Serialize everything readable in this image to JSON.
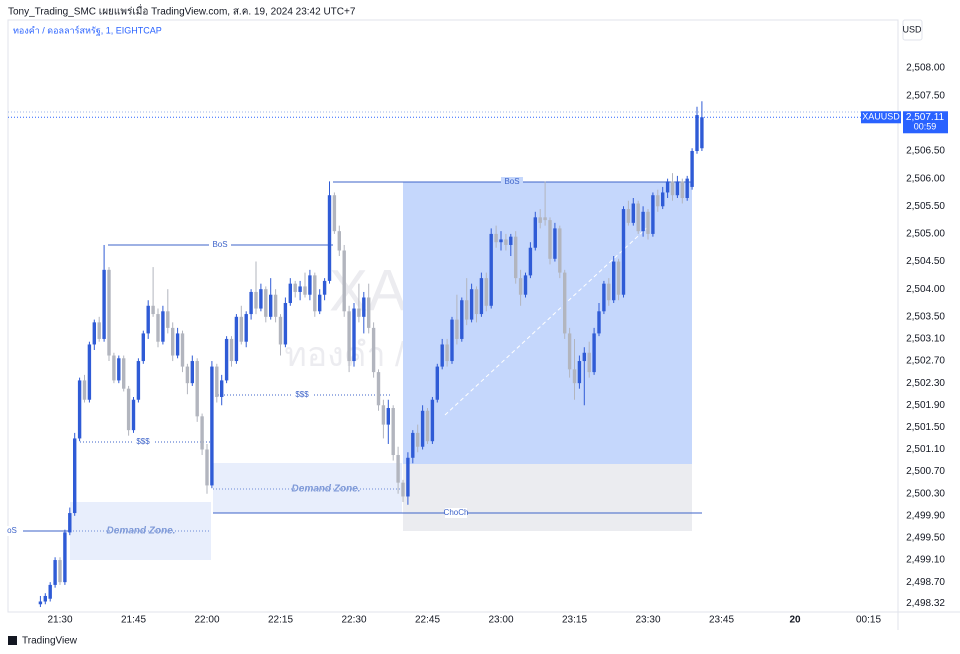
{
  "header": {
    "title": "Tony_Trading_SMC เผยแพร่เมื่อ TradingView.com, ส.ค. 19, 2024 23:42 UTC+7",
    "branding": "TradingView"
  },
  "chart_data": {
    "type": "candlestick",
    "subtitle": "ทองคำ / ดอลลาร์สหรัฐ, 1, EIGHTCAP",
    "watermark": [
      "XAUUSD",
      "ทองคำ / ดอลลาร์สหรัฐ"
    ],
    "currency": "USD",
    "symbol": "XAUUSD",
    "last_price_label": "2,507.11",
    "countdown": "00:59",
    "up_color": "#2f5bd6",
    "down_color": "#b2b5be",
    "annotations": [
      "oS",
      "BoS",
      "BoS",
      "$$$",
      "$$$",
      "Demand Zone.",
      "Demand Zone.",
      "ChoCh"
    ],
    "x": [
      "21:26",
      "21:27",
      "21:28",
      "21:29",
      "21:30",
      "21:31",
      "21:32",
      "21:33",
      "21:34",
      "21:35",
      "21:36",
      "21:37",
      "21:38",
      "21:39",
      "21:40",
      "21:41",
      "21:42",
      "21:43",
      "21:44",
      "21:45",
      "21:46",
      "21:47",
      "21:48",
      "21:49",
      "21:50",
      "21:51",
      "21:52",
      "21:53",
      "21:54",
      "21:55",
      "21:56",
      "21:57",
      "21:58",
      "21:59",
      "22:00",
      "22:01",
      "22:02",
      "22:03",
      "22:04",
      "22:05",
      "22:06",
      "22:07",
      "22:08",
      "22:09",
      "22:10",
      "22:11",
      "22:12",
      "22:13",
      "22:14",
      "22:15",
      "22:16",
      "22:17",
      "22:18",
      "22:19",
      "22:20",
      "22:21",
      "22:22",
      "22:23",
      "22:24",
      "22:25",
      "22:26",
      "22:27",
      "22:28",
      "22:29",
      "22:30",
      "22:31",
      "22:32",
      "22:33",
      "22:34",
      "22:35",
      "22:36",
      "22:37",
      "22:38",
      "22:39",
      "22:40",
      "22:41",
      "22:42",
      "22:43",
      "22:44",
      "22:45",
      "22:46",
      "22:47",
      "22:48",
      "22:49",
      "22:50",
      "22:51",
      "22:52",
      "22:53",
      "22:54",
      "22:55",
      "22:56",
      "22:57",
      "22:58",
      "22:59",
      "23:00",
      "23:01",
      "23:02",
      "23:03",
      "23:04",
      "23:05",
      "23:06",
      "23:07",
      "23:08",
      "23:09",
      "23:10",
      "23:11",
      "23:12",
      "23:13",
      "23:14",
      "23:15",
      "23:16",
      "23:17",
      "23:18",
      "23:19",
      "23:20",
      "23:21",
      "23:22",
      "23:23",
      "23:24",
      "23:25",
      "23:26",
      "23:27",
      "23:28",
      "23:29",
      "23:30",
      "23:31",
      "23:32",
      "23:33",
      "23:34",
      "23:35",
      "23:36",
      "23:37",
      "23:38",
      "23:39",
      "23:40",
      "23:41"
    ],
    "open": [
      2498.3,
      2498.35,
      2498.4,
      2498.65,
      2499.1,
      2498.7,
      2499.6,
      2499.95,
      2501.3,
      2502.35,
      2502,
      2503,
      2503.4,
      2503.1,
      2504.35,
      2502.8,
      2502.35,
      2502.75,
      2502.2,
      2501.45,
      2502,
      2502.7,
      2503.2,
      2503.7,
      2503.55,
      2503.05,
      2503.6,
      2503.3,
      2502.8,
      2503.2,
      2502.6,
      2502.3,
      2502.7,
      2501.7,
      2501.1,
      2500.45,
      2502.6,
      2502.05,
      2502.35,
      2503.1,
      2502.7,
      2503.5,
      2503.05,
      2503.55,
      2503.95,
      2503.65,
      2504,
      2503.5,
      2503.9,
      2503.5,
      2503,
      2503.75,
      2504.1,
      2503.95,
      2504.05,
      2503.9,
      2504.25,
      2503.6,
      2503.9,
      2504.15,
      2505.7,
      2505.05,
      2504.7,
      2503.6,
      2502.7,
      2503.65,
      2503.5,
      2503.85,
      2503.3,
      2502.5,
      2501.9,
      2501.55,
      2501.85,
      2501,
      2500.5,
      2500.25,
      2500.95,
      2501.4,
      2501.15,
      2501.8,
      2501.25,
      2502,
      2502.6,
      2503,
      2502.7,
      2503.45,
      2503.1,
      2503.8,
      2503.45,
      2504,
      2503.55,
      2504.2,
      2503.7,
      2505,
      2504.85,
      2504.9,
      2504.8,
      2504.95,
      2504.2,
      2503.9,
      2504.25,
      2504.75,
      2505.3,
      2505.3,
      2505.25,
      2504.55,
      2505.1,
      2504.3,
      2503.2,
      2502.55,
      2502.3,
      2502.7,
      2502.85,
      2502.5,
      2503.2,
      2503.6,
      2504.1,
      2503.8,
      2504.5,
      2503.9,
      2505.45,
      2505.2,
      2505.55,
      2505.05,
      2505.4,
      2505,
      2505.7,
      2505.5,
      2505.75,
      2505.95,
      2505.7,
      2505.95,
      2505.65,
      2505.85,
      2506.5,
      2506.55
    ],
    "high": [
      2498.45,
      2498.5,
      2498.7,
      2499.15,
      2499.15,
      2499.65,
      2500.05,
      2501.4,
      2502.4,
      2502.45,
      2503.05,
      2503.45,
      2503.5,
      2504.8,
      2504.4,
      2502.85,
      2502.8,
      2502.8,
      2502.25,
      2502.05,
      2502.75,
      2503.25,
      2503.8,
      2504.4,
      2503.65,
      2503.7,
      2504,
      2503.4,
      2503.3,
      2503.25,
      2502.65,
      2502.8,
      2502.75,
      2501.75,
      2501.2,
      2502.7,
      2502.65,
      2502.45,
      2503.15,
      2503.15,
      2503.55,
      2503.7,
      2503.6,
      2504,
      2504.5,
      2504.1,
      2504.05,
      2504.2,
      2504,
      2503.55,
      2503.85,
      2504.2,
      2504.15,
      2504.15,
      2504.3,
      2504.35,
      2504.3,
      2504,
      2504.2,
      2505.95,
      2505.75,
      2505.15,
      2504.8,
      2503.7,
      2503.75,
      2504.1,
      2503.95,
      2504.1,
      2503.4,
      2502.55,
      2502,
      2502,
      2501.9,
      2501.15,
      2500.55,
      2501.05,
      2501.45,
      2501.55,
      2501.9,
      2501.85,
      2502.05,
      2502.65,
      2503.1,
      2503.1,
      2503.5,
      2503.9,
      2503.85,
      2504.2,
      2504.1,
      2504.05,
      2504.3,
      2504.3,
      2505.1,
      2505.15,
      2505.05,
      2505,
      2505,
      2505.05,
      2504.35,
      2504.3,
      2504.85,
      2505.4,
      2505.45,
      2505.95,
      2505.3,
      2505.2,
      2505.15,
      2504.35,
      2503.3,
      2503.1,
      2502.8,
      2502.95,
      2503.05,
      2503.3,
      2503.75,
      2504.15,
      2504.2,
      2504.6,
      2504.55,
      2505.5,
      2505.6,
      2505.65,
      2505.6,
      2505.5,
      2505.45,
      2505.75,
      2505.8,
      2505.85,
      2506,
      2506.1,
      2506.05,
      2506,
      2506.05,
      2506.55,
      2507.3,
      2507.4
    ],
    "low": [
      2498.25,
      2498.3,
      2498.35,
      2498.6,
      2498.65,
      2498.65,
      2499.55,
      2499.9,
      2501.25,
      2501.95,
      2501.95,
      2502.9,
      2503.05,
      2503.05,
      2502.7,
      2502.3,
      2502.3,
      2502.15,
      2501.35,
      2501.4,
      2501.95,
      2502.65,
      2503.1,
      2503.5,
      2502.95,
      2503,
      2503.2,
      2502.7,
      2502.75,
      2502.5,
      2502.1,
      2502.25,
      2501.6,
      2501,
      2500.3,
      2500.4,
      2501.95,
      2501.9,
      2502.3,
      2502.6,
      2502.65,
      2503,
      2502.95,
      2503.45,
      2503.55,
      2503.6,
      2503.4,
      2503.45,
      2503.4,
      2502.8,
      2502.95,
      2503.7,
      2503.85,
      2503.8,
      2503.85,
      2503.8,
      2503.5,
      2503.55,
      2503.8,
      2504.1,
      2505,
      2504.6,
      2503.5,
      2502.5,
      2502.6,
      2503.4,
      2503.2,
      2503.2,
      2502.4,
      2501.8,
      2501.3,
      2501.2,
      2500.9,
      2500.3,
      2500.15,
      2500.1,
      2500.85,
      2501.05,
      2501.1,
      2501.2,
      2501.2,
      2501.95,
      2502.55,
      2502.6,
      2502.65,
      2503,
      2503.05,
      2503.35,
      2503.4,
      2503.4,
      2503.5,
      2503.6,
      2503.65,
      2504.75,
      2504.7,
      2504.7,
      2504.6,
      2504.1,
      2503.7,
      2503.85,
      2504.2,
      2504.7,
      2505.1,
      2505.15,
      2504.45,
      2504.5,
      2504.2,
      2503.1,
      2502.4,
      2502,
      2502.2,
      2501.9,
      2502.4,
      2502.45,
      2503.15,
      2503.55,
      2503.7,
      2503.75,
      2503.8,
      2503.85,
      2505.15,
      2505.15,
      2505,
      2504.95,
      2504.9,
      2504.95,
      2505.4,
      2505.45,
      2505.65,
      2505.6,
      2505.65,
      2505.55,
      2505.6,
      2505.8,
      2506.45,
      2506.5
    ],
    "close": [
      2498.35,
      2498.45,
      2498.65,
      2499.1,
      2498.7,
      2499.6,
      2499.95,
      2501.3,
      2502.35,
      2502,
      2503,
      2503.4,
      2503.1,
      2504.35,
      2502.8,
      2502.35,
      2502.75,
      2502.2,
      2501.45,
      2502,
      2502.7,
      2503.2,
      2503.7,
      2503.55,
      2503.05,
      2503.6,
      2503.3,
      2502.8,
      2503.2,
      2502.6,
      2502.3,
      2502.7,
      2501.7,
      2501.1,
      2500.45,
      2502.6,
      2502.05,
      2502.35,
      2503.1,
      2502.7,
      2503.5,
      2503.05,
      2503.55,
      2503.95,
      2503.65,
      2504,
      2503.5,
      2503.9,
      2503.5,
      2503,
      2503.75,
      2504.1,
      2503.95,
      2504.05,
      2503.9,
      2504.25,
      2503.6,
      2503.9,
      2504.15,
      2505.7,
      2505.05,
      2504.7,
      2503.6,
      2502.7,
      2503.65,
      2503.5,
      2503.85,
      2503.3,
      2502.5,
      2501.9,
      2501.55,
      2501.85,
      2501,
      2500.5,
      2500.25,
      2500.95,
      2501.4,
      2501.15,
      2501.8,
      2501.25,
      2502,
      2502.6,
      2503,
      2502.7,
      2503.45,
      2503.1,
      2503.8,
      2503.45,
      2504,
      2503.55,
      2504.2,
      2503.7,
      2505,
      2504.85,
      2504.9,
      2504.8,
      2504.95,
      2504.2,
      2503.9,
      2504.25,
      2504.75,
      2505.3,
      2505.2,
      2505.25,
      2504.55,
      2505.1,
      2504.3,
      2503.2,
      2502.55,
      2502.3,
      2502.7,
      2502.85,
      2502.5,
      2503.2,
      2503.6,
      2504.1,
      2503.8,
      2504.5,
      2503.9,
      2505.45,
      2505.2,
      2505.55,
      2505.05,
      2505.4,
      2505,
      2505.7,
      2505.5,
      2505.75,
      2505.95,
      2505.7,
      2505.95,
      2505.65,
      2506,
      2506.5,
      2507.15,
      2507.11
    ],
    "ylim": [
      2498.16,
      2508.87
    ],
    "yticks": [
      {
        "value": 2508,
        "label": "2,508.00"
      },
      {
        "value": 2507.5,
        "label": "2,507.50"
      },
      {
        "value": 2506.5,
        "label": "2,506.50"
      },
      {
        "value": 2506,
        "label": "2,506.00"
      },
      {
        "value": 2505.5,
        "label": "2,505.50"
      },
      {
        "value": 2505,
        "label": "2,505.00"
      },
      {
        "value": 2504.5,
        "label": "2,504.50"
      },
      {
        "value": 2504,
        "label": "2,504.00"
      },
      {
        "value": 2503.5,
        "label": "2,503.50"
      },
      {
        "value": 2503.1,
        "label": "2,503.10"
      },
      {
        "value": 2502.7,
        "label": "2,502.70"
      },
      {
        "value": 2502.3,
        "label": "2,502.30"
      },
      {
        "value": 2501.9,
        "label": "2,501.90"
      },
      {
        "value": 2501.5,
        "label": "2,501.50"
      },
      {
        "value": 2501.1,
        "label": "2,501.10"
      },
      {
        "value": 2500.7,
        "label": "2,500.70"
      },
      {
        "value": 2500.3,
        "label": "2,500.30"
      },
      {
        "value": 2499.9,
        "label": "2,499.90"
      },
      {
        "value": 2499.5,
        "label": "2,499.50"
      },
      {
        "value": 2499.1,
        "label": "2,499.10"
      },
      {
        "value": 2498.7,
        "label": "2,498.70"
      },
      {
        "value": 2498.32,
        "label": "2,498.32"
      }
    ],
    "xticks": [
      "21:30",
      "21:45",
      "22:00",
      "22:15",
      "22:30",
      "22:45",
      "23:00",
      "23:15",
      "23:30",
      "23:45",
      "20",
      "00:15"
    ]
  }
}
